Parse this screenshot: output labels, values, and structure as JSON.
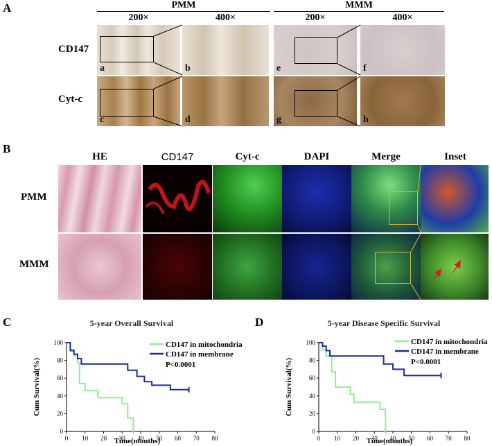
{
  "panel_a": {
    "letter": "A",
    "group_left": "PMM",
    "group_right": "MMM",
    "mag_labels": [
      "200×",
      "400×",
      "200×",
      "400×"
    ],
    "rows": [
      "CD147",
      "Cyt-c"
    ],
    "sublabels": [
      "a",
      "b",
      "e",
      "f",
      "c",
      "d",
      "g",
      "h"
    ]
  },
  "panel_b": {
    "letter": "B",
    "columns": [
      "HE",
      "CD147",
      "Cyt-c",
      "DAPI",
      "Merge",
      "Inset"
    ],
    "rows": [
      "PMM",
      "MMM"
    ]
  },
  "charts": {
    "c": {
      "letter": "C",
      "title": "5-year Overall Survival",
      "ylabel": "Cum Survival(%)",
      "xlabel": "Time(months)",
      "legend": [
        "CD147 in mitochondria",
        "CD147 in membrane"
      ],
      "pvalue": "P<0.0001"
    },
    "d": {
      "letter": "D",
      "title": "5-year Disease Specific Survival",
      "ylabel": "Cum Survival(%)",
      "xlabel": "Time(months)",
      "legend": [
        "CD147 in mitochondria",
        "CD147 in membrane"
      ],
      "pvalue": "P<0.0001"
    }
  },
  "colors": {
    "mito": "#90ee90",
    "membrane": "#1a2a9e"
  },
  "chart_data": [
    {
      "type": "line",
      "title": "5-year Overall Survival",
      "xlabel": "Time(months)",
      "ylabel": "Cum Survival(%)",
      "xlim": [
        0,
        80
      ],
      "ylim": [
        0,
        100
      ],
      "xticks": [
        0,
        10,
        20,
        30,
        40,
        50,
        60,
        70,
        80
      ],
      "yticks": [
        0,
        20,
        40,
        60,
        80,
        100
      ],
      "legend_position": "top-right",
      "series": [
        {
          "name": "CD147 in mitochondria",
          "color": "#90ee90",
          "x": [
            0,
            2,
            2,
            4,
            4,
            6,
            6,
            7,
            7,
            10,
            10,
            17,
            17,
            20,
            20,
            27,
            27,
            30,
            30,
            33,
            33,
            36,
            36
          ],
          "y": [
            100,
            100,
            92,
            92,
            85,
            85,
            77,
            77,
            54,
            54,
            46,
            46,
            38,
            38,
            38,
            38,
            38,
            38,
            31,
            31,
            15,
            15,
            0
          ]
        },
        {
          "name": "CD147 in membrane",
          "color": "#1a2a9e",
          "x": [
            0,
            2,
            2,
            4,
            4,
            6,
            6,
            8,
            8,
            33,
            33,
            38,
            38,
            42,
            42,
            46,
            46,
            56,
            56,
            66
          ],
          "y": [
            100,
            100,
            91,
            91,
            87,
            87,
            82,
            82,
            76,
            76,
            69,
            69,
            62,
            62,
            56,
            56,
            52,
            52,
            47,
            47
          ]
        }
      ]
    },
    {
      "type": "line",
      "title": "5-year Disease Specific Survival",
      "xlabel": "Time(months)",
      "ylabel": "Cum Survival(%)",
      "xlim": [
        0,
        80
      ],
      "ylim": [
        0,
        100
      ],
      "xticks": [
        0,
        10,
        20,
        30,
        40,
        50,
        60,
        70,
        80
      ],
      "yticks": [
        0,
        20,
        40,
        60,
        80,
        100
      ],
      "legend_position": "top-right",
      "series": [
        {
          "name": "CD147 in mitochondria",
          "color": "#90ee90",
          "x": [
            0,
            2,
            2,
            4,
            4,
            7,
            7,
            9,
            9,
            17,
            17,
            19,
            19,
            33,
            33,
            36,
            36
          ],
          "y": [
            100,
            100,
            92,
            92,
            85,
            85,
            67,
            67,
            50,
            50,
            42,
            42,
            33,
            33,
            25,
            25,
            0
          ]
        },
        {
          "name": "CD147 in membrane",
          "color": "#1a2a9e",
          "x": [
            0,
            2,
            2,
            4,
            4,
            6,
            6,
            35,
            35,
            40,
            40,
            46,
            46,
            66
          ],
          "y": [
            100,
            100,
            96,
            96,
            91,
            91,
            85,
            85,
            76,
            76,
            70,
            70,
            63,
            63
          ]
        }
      ]
    }
  ]
}
